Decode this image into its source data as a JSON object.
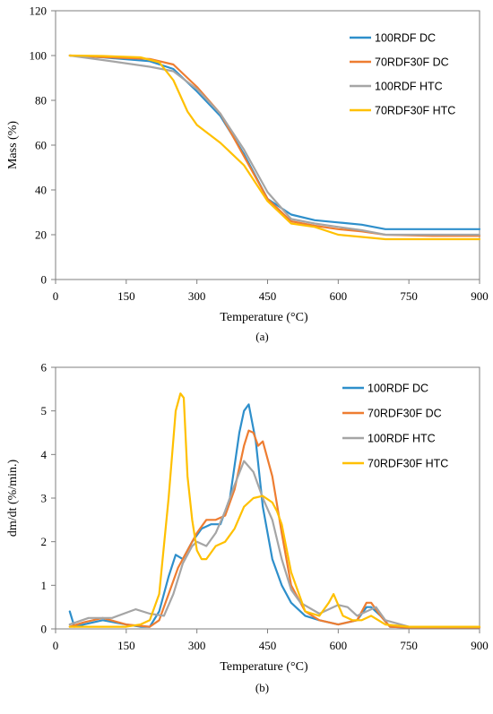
{
  "colors": {
    "100RDF DC": "#2E8FCB",
    "70RDF30F DC": "#EE7D31",
    "100RDF HTC": "#A5A5A5",
    "70RDF30F HTC": "#FFC000"
  },
  "chart_data": [
    {
      "type": "line",
      "caption": "(a)",
      "xlabel": "Temperature (°C)",
      "ylabel": "Mass (%)",
      "xlim": [
        0,
        900
      ],
      "ylim": [
        0,
        120
      ],
      "xticks": [
        0,
        150,
        300,
        450,
        600,
        750,
        900
      ],
      "yticks": [
        0,
        20,
        40,
        60,
        80,
        100,
        120
      ],
      "grid": false,
      "legend_position": "top-right",
      "series": [
        {
          "name": "100RDF DC",
          "x": [
            30,
            100,
            200,
            250,
            300,
            350,
            400,
            450,
            500,
            550,
            600,
            650,
            700,
            800,
            900
          ],
          "y": [
            100,
            99.2,
            97.5,
            94,
            84,
            73,
            56,
            36,
            29,
            26.5,
            25.5,
            24.5,
            22.5,
            22.5,
            22.5
          ]
        },
        {
          "name": "70RDF30F DC",
          "x": [
            30,
            100,
            200,
            250,
            300,
            350,
            400,
            450,
            500,
            550,
            600,
            650,
            700,
            800,
            900
          ],
          "y": [
            100,
            99.3,
            98.5,
            96,
            86,
            74,
            55,
            36,
            26,
            24,
            22.5,
            21.5,
            20,
            19.5,
            19.5
          ]
        },
        {
          "name": "100RDF HTC",
          "x": [
            30,
            100,
            200,
            250,
            300,
            350,
            400,
            450,
            500,
            550,
            600,
            650,
            700,
            800,
            900
          ],
          "y": [
            100,
            98,
            95,
            93,
            85,
            74,
            58,
            39,
            27,
            25,
            23.5,
            22,
            20,
            20,
            20
          ]
        },
        {
          "name": "70RDF30F HTC",
          "x": [
            30,
            100,
            180,
            220,
            250,
            280,
            300,
            350,
            400,
            450,
            500,
            550,
            600,
            650,
            700,
            800,
            900
          ],
          "y": [
            100,
            99.8,
            99.2,
            97,
            89,
            75,
            69,
            61,
            51,
            35,
            25,
            23.5,
            20,
            19,
            18,
            18,
            18
          ]
        }
      ]
    },
    {
      "type": "line",
      "caption": "(b)",
      "xlabel": "Temperature (°C)",
      "ylabel": "dm/dt (%/min.)",
      "xlim": [
        0,
        900
      ],
      "ylim": [
        0,
        6
      ],
      "xticks": [
        0,
        150,
        300,
        450,
        600,
        750,
        900
      ],
      "yticks": [
        0,
        1,
        2,
        3,
        4,
        5,
        6
      ],
      "grid": false,
      "legend_position": "top-right",
      "series": [
        {
          "name": "100RDF DC",
          "x": [
            30,
            40,
            60,
            100,
            150,
            180,
            200,
            220,
            240,
            255,
            270,
            290,
            310,
            330,
            350,
            370,
            390,
            400,
            410,
            425,
            440,
            460,
            480,
            500,
            530,
            560,
            600,
            640,
            660,
            670,
            690,
            710,
            750,
            800,
            900
          ],
          "y": [
            0.4,
            0.05,
            0.1,
            0.2,
            0.1,
            0.05,
            0.05,
            0.4,
            1.2,
            1.7,
            1.6,
            2.0,
            2.3,
            2.4,
            2.4,
            3.0,
            4.5,
            5.0,
            5.15,
            4.3,
            2.8,
            1.6,
            1.0,
            0.6,
            0.3,
            0.2,
            0.1,
            0.2,
            0.5,
            0.5,
            0.3,
            0.05,
            0.03,
            0.03,
            0.03
          ]
        },
        {
          "name": "70RDF30F DC",
          "x": [
            30,
            60,
            100,
            150,
            200,
            220,
            240,
            260,
            280,
            300,
            320,
            340,
            360,
            380,
            400,
            410,
            420,
            430,
            440,
            460,
            480,
            500,
            530,
            560,
            600,
            640,
            660,
            670,
            690,
            710,
            750,
            800,
            900
          ],
          "y": [
            0.05,
            0.15,
            0.25,
            0.1,
            0.05,
            0.2,
            0.8,
            1.4,
            1.8,
            2.2,
            2.5,
            2.5,
            2.6,
            3.2,
            4.2,
            4.55,
            4.5,
            4.2,
            4.3,
            3.5,
            2.2,
            1.0,
            0.4,
            0.2,
            0.1,
            0.2,
            0.6,
            0.6,
            0.3,
            0.05,
            0.03,
            0.03,
            0.03
          ]
        },
        {
          "name": "100RDF HTC",
          "x": [
            30,
            70,
            120,
            170,
            200,
            230,
            250,
            270,
            290,
            300,
            320,
            340,
            360,
            380,
            400,
            420,
            440,
            460,
            480,
            500,
            520,
            560,
            600,
            620,
            640,
            660,
            680,
            700,
            750,
            800,
            900
          ],
          "y": [
            0.1,
            0.25,
            0.25,
            0.45,
            0.35,
            0.3,
            0.8,
            1.5,
            1.9,
            2.0,
            1.9,
            2.2,
            2.7,
            3.3,
            3.85,
            3.6,
            3.0,
            2.5,
            1.6,
            0.9,
            0.6,
            0.35,
            0.55,
            0.5,
            0.3,
            0.4,
            0.5,
            0.2,
            0.05,
            0.05,
            0.05
          ]
        },
        {
          "name": "70RDF30F HTC",
          "x": [
            30,
            60,
            100,
            150,
            180,
            200,
            220,
            240,
            255,
            265,
            272,
            280,
            290,
            300,
            310,
            320,
            340,
            360,
            380,
            400,
            420,
            440,
            460,
            470,
            480,
            500,
            530,
            560,
            580,
            590,
            600,
            610,
            630,
            650,
            670,
            700,
            750,
            800,
            900
          ],
          "y": [
            0.05,
            0.05,
            0.05,
            0.05,
            0.1,
            0.2,
            0.8,
            3.0,
            5.0,
            5.4,
            5.3,
            3.5,
            2.5,
            1.8,
            1.6,
            1.6,
            1.9,
            2.0,
            2.3,
            2.8,
            3.0,
            3.05,
            2.9,
            2.7,
            2.4,
            1.3,
            0.4,
            0.3,
            0.6,
            0.8,
            0.55,
            0.3,
            0.2,
            0.2,
            0.3,
            0.1,
            0.05,
            0.05,
            0.05
          ]
        }
      ]
    }
  ]
}
